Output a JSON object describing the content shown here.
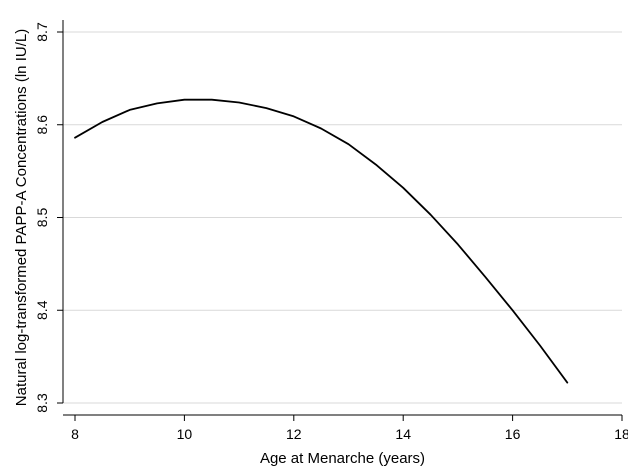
{
  "chart_data": {
    "type": "line",
    "title": "",
    "xlabel": "Age at Menarche (years)",
    "ylabel": "Natural log-transformed PAPP-A Concentrations (ln IU/L)",
    "xlim": [
      8,
      18
    ],
    "ylim": [
      8.3,
      8.7
    ],
    "xticks": [
      8,
      10,
      12,
      14,
      16,
      18
    ],
    "yticks": [
      8.3,
      8.4,
      8.5,
      8.6,
      8.7
    ],
    "xtick_labels": [
      "8",
      "10",
      "12",
      "14",
      "16",
      "18"
    ],
    "ytick_labels": [
      "8.3",
      "8.4",
      "8.5",
      "8.6",
      "8.7"
    ],
    "grid": "horizontal",
    "series": [
      {
        "color": "#000000",
        "x": [
          8.0,
          8.5,
          9.0,
          9.5,
          10.0,
          10.5,
          11.0,
          11.5,
          12.0,
          12.5,
          13.0,
          13.5,
          14.0,
          14.5,
          15.0,
          15.5,
          16.0,
          16.5,
          17.0
        ],
        "y": [
          8.586,
          8.603,
          8.616,
          8.623,
          8.627,
          8.627,
          8.624,
          8.618,
          8.609,
          8.596,
          8.579,
          8.557,
          8.532,
          8.503,
          8.471,
          8.436,
          8.4,
          8.362,
          8.322
        ]
      }
    ]
  }
}
